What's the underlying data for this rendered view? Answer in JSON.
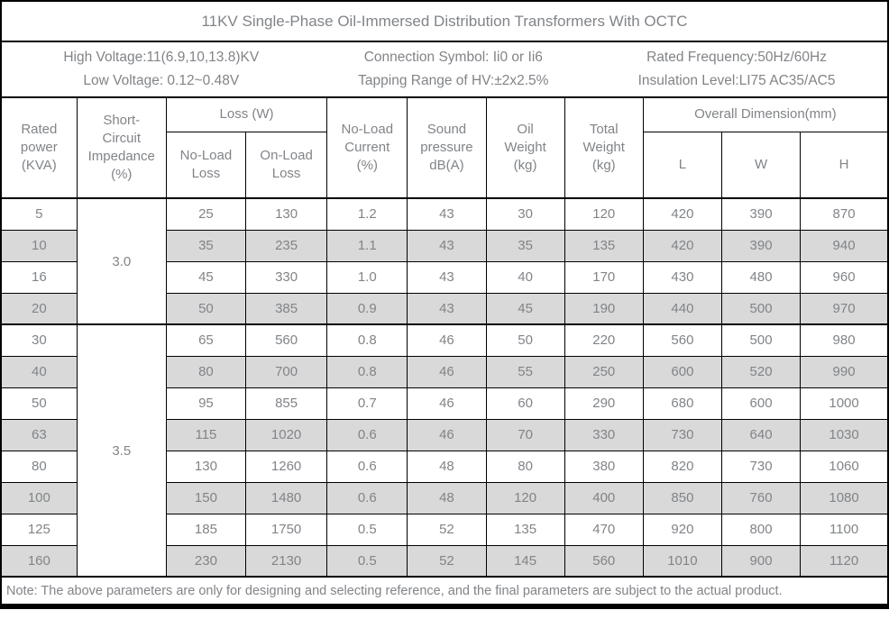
{
  "title": "11KV Single-Phase Oil-Immersed Distribution Transformers With OCTC",
  "info": {
    "high_voltage": "High Voltage:11(6.9,10,13.8)KV",
    "low_voltage": "Low Voltage: 0.12~0.48V",
    "connection_symbol": "Connection Symbol: Ii0 or Ii6",
    "tapping_range": "Tapping Range of HV:±2x2.5%",
    "rated_frequency": "Rated Frequency:50Hz/60Hz",
    "insulation_level": "Insulation Level:LI75 AC35/AC5"
  },
  "table": {
    "headers": {
      "rated_power": "Rated\npower\n(KVA)",
      "impedance": "Short-\nCircuit\nImpedance\n(%)",
      "loss": "Loss (W)",
      "no_load_loss": "No-Load\nLoss",
      "on_load_loss": "On-Load\nLoss",
      "no_load_current": "No-Load\nCurrent\n(%)",
      "sound_pressure": "Sound\npressure\ndB(A)",
      "oil_weight": "Oil\nWeight\n(kg)",
      "total_weight": "Total\nWeight\n(kg)",
      "overall_dimension": "Overall Dimension(mm)",
      "dim_l": "L",
      "dim_w": "W",
      "dim_h": "H"
    },
    "columns": [
      "Rated power (KVA)",
      "Short-Circuit Impedance (%)",
      "No-Load Loss (W)",
      "On-Load Loss (W)",
      "No-Load Current (%)",
      "Sound pressure dB(A)",
      "Oil Weight (kg)",
      "Total Weight (kg)",
      "L (mm)",
      "W (mm)",
      "H (mm)"
    ],
    "groups": [
      {
        "impedance": "3.0",
        "rows": [
          [
            "5",
            "25",
            "130",
            "1.2",
            "43",
            "30",
            "120",
            "420",
            "390",
            "870"
          ],
          [
            "10",
            "35",
            "235",
            "1.1",
            "43",
            "35",
            "135",
            "420",
            "390",
            "940"
          ],
          [
            "16",
            "45",
            "330",
            "1.0",
            "43",
            "40",
            "170",
            "430",
            "480",
            "960"
          ],
          [
            "20",
            "50",
            "385",
            "0.9",
            "43",
            "45",
            "190",
            "440",
            "500",
            "970"
          ]
        ]
      },
      {
        "impedance": "3.5",
        "rows": [
          [
            "30",
            "65",
            "560",
            "0.8",
            "46",
            "50",
            "220",
            "560",
            "500",
            "980"
          ],
          [
            "40",
            "80",
            "700",
            "0.8",
            "46",
            "55",
            "250",
            "600",
            "520",
            "990"
          ],
          [
            "50",
            "95",
            "855",
            "0.7",
            "46",
            "60",
            "290",
            "680",
            "600",
            "1000"
          ],
          [
            "63",
            "115",
            "1020",
            "0.6",
            "46",
            "70",
            "330",
            "730",
            "640",
            "1030"
          ],
          [
            "80",
            "130",
            "1260",
            "0.6",
            "48",
            "80",
            "380",
            "820",
            "730",
            "1060"
          ],
          [
            "100",
            "150",
            "1480",
            "0.6",
            "48",
            "120",
            "400",
            "850",
            "760",
            "1080"
          ],
          [
            "125",
            "185",
            "1750",
            "0.5",
            "52",
            "135",
            "470",
            "920",
            "800",
            "1100"
          ],
          [
            "160",
            "230",
            "2130",
            "0.5",
            "52",
            "145",
            "560",
            "1010",
            "900",
            "1120"
          ]
        ]
      }
    ]
  },
  "note": "Note: The above parameters are only for designing and selecting  reference, and the final parameters are subject to the actual product.",
  "colors": {
    "text": "#818488",
    "border": "#000000",
    "row_shade": "#d9d9d9",
    "background": "#ffffff"
  }
}
